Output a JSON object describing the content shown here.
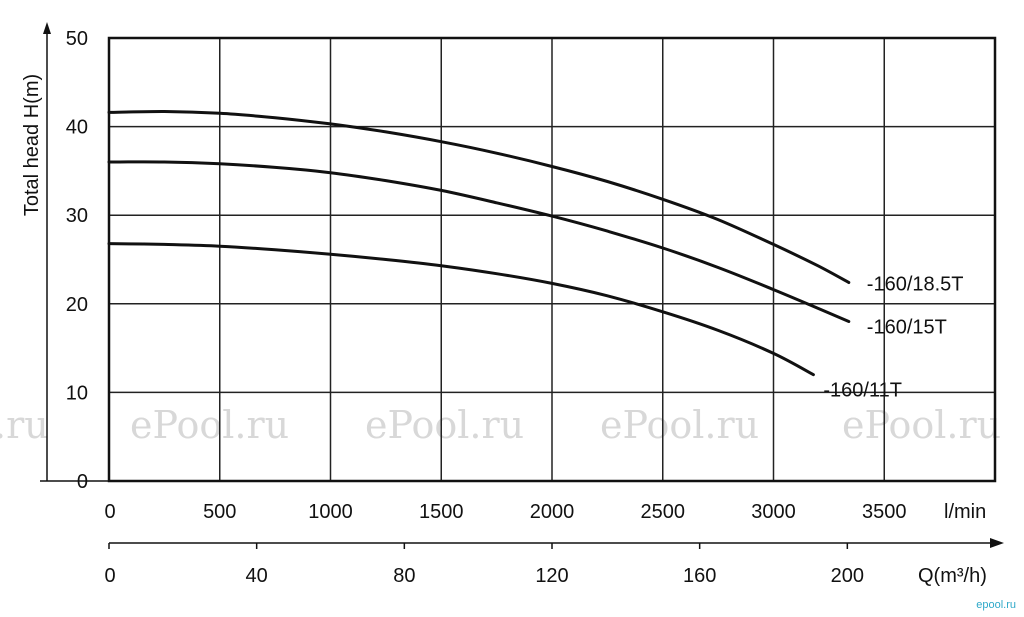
{
  "chart_data": {
    "type": "line",
    "title": "",
    "ylabel": "Total head  H(m)",
    "xlabel": "l/min",
    "x2label": "Q(m³/h)",
    "xlim": [
      0,
      4000
    ],
    "ylim": [
      0,
      50
    ],
    "x_ticks": [
      0,
      500,
      1000,
      1500,
      2000,
      2500,
      3000,
      3500
    ],
    "y_ticks": [
      0,
      10,
      20,
      30,
      40,
      50
    ],
    "x2_ticks": [
      0,
      40,
      80,
      120,
      160,
      200
    ],
    "grid": true,
    "series": [
      {
        "name": "-160/18.5T",
        "x": [
          0,
          250,
          500,
          750,
          1000,
          1250,
          1500,
          1750,
          2000,
          2250,
          2500,
          2750,
          3000,
          3200,
          3340
        ],
        "y": [
          41.6,
          41.7,
          41.5,
          41.0,
          40.3,
          39.4,
          38.3,
          37.0,
          35.5,
          33.8,
          31.8,
          29.5,
          26.7,
          24.3,
          22.4
        ]
      },
      {
        "name": "-160/15T",
        "x": [
          0,
          250,
          500,
          750,
          1000,
          1250,
          1500,
          1750,
          2000,
          2250,
          2500,
          2750,
          3000,
          3200,
          3340
        ],
        "y": [
          36.0,
          36.0,
          35.8,
          35.4,
          34.8,
          33.9,
          32.8,
          31.4,
          29.9,
          28.2,
          26.3,
          24.1,
          21.6,
          19.5,
          18.0
        ]
      },
      {
        "name": "-160/11T",
        "x": [
          0,
          250,
          500,
          750,
          1000,
          1250,
          1500,
          1750,
          2000,
          2250,
          2500,
          2750,
          3000,
          3180
        ],
        "y": [
          26.8,
          26.7,
          26.5,
          26.1,
          25.6,
          25.0,
          24.3,
          23.4,
          22.3,
          20.9,
          19.1,
          17.0,
          14.4,
          12.0
        ]
      }
    ]
  },
  "watermark": "ePool.ru",
  "watermark_edge": ".ru",
  "brand": "epool.ru"
}
